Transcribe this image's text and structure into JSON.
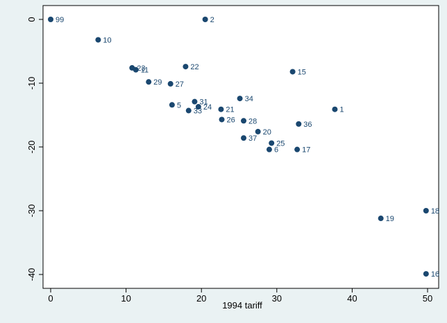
{
  "chart_data": {
    "type": "scatter",
    "title": "",
    "xlabel": "1994 tariff",
    "ylabel": "",
    "xlim": [
      0,
      50
    ],
    "ylim": [
      -40,
      0
    ],
    "xticks": [
      0,
      10,
      20,
      30,
      40,
      50
    ],
    "yticks": [
      0,
      -10,
      -20,
      -30,
      -40
    ],
    "grid": false,
    "point_color": "#1a476f",
    "points": [
      {
        "label": "99",
        "x": 0,
        "y": 0
      },
      {
        "label": "2",
        "x": 20.5,
        "y": 0
      },
      {
        "label": "10",
        "x": 6.3,
        "y": -3.2
      },
      {
        "label": "23",
        "x": 10.8,
        "y": -7.6
      },
      {
        "label": "11",
        "x": 11.3,
        "y": -7.9
      },
      {
        "label": "22",
        "x": 17.9,
        "y": -7.4
      },
      {
        "label": "15",
        "x": 32.1,
        "y": -8.2
      },
      {
        "label": "29",
        "x": 13.0,
        "y": -9.8
      },
      {
        "label": "27",
        "x": 15.9,
        "y": -10.1
      },
      {
        "label": "34",
        "x": 25.1,
        "y": -12.4
      },
      {
        "label": "31",
        "x": 19.1,
        "y": -12.9
      },
      {
        "label": "5",
        "x": 16.1,
        "y": -13.4
      },
      {
        "label": "24",
        "x": 19.6,
        "y": -13.7
      },
      {
        "label": "33",
        "x": 18.3,
        "y": -14.3
      },
      {
        "label": "21",
        "x": 22.6,
        "y": -14.1
      },
      {
        "label": "1",
        "x": 37.7,
        "y": -14.1
      },
      {
        "label": "26",
        "x": 22.7,
        "y": -15.7
      },
      {
        "label": "28",
        "x": 25.6,
        "y": -15.9
      },
      {
        "label": "36",
        "x": 32.9,
        "y": -16.4
      },
      {
        "label": "20",
        "x": 27.5,
        "y": -17.6
      },
      {
        "label": "37",
        "x": 25.6,
        "y": -18.6
      },
      {
        "label": "25",
        "x": 29.3,
        "y": -19.4
      },
      {
        "label": "6",
        "x": 29.0,
        "y": -20.4
      },
      {
        "label": "17",
        "x": 32.7,
        "y": -20.4
      },
      {
        "label": "19",
        "x": 43.8,
        "y": -31.2
      },
      {
        "label": "18",
        "x": 49.8,
        "y": -30.0
      },
      {
        "label": "16",
        "x": 49.8,
        "y": -39.9
      }
    ]
  }
}
